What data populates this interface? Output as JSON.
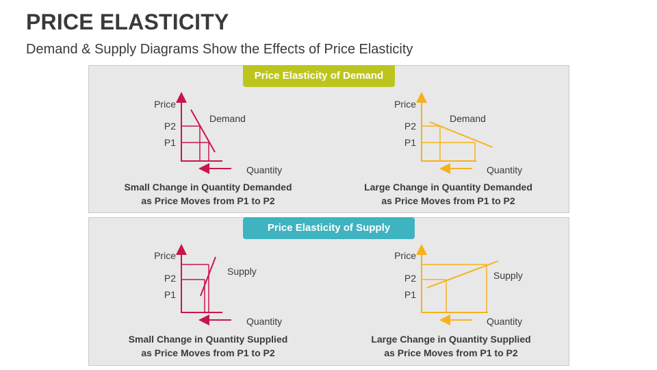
{
  "title": "PRICE ELASTICITY",
  "subtitle": "Demand & Supply Diagrams Show the Effects of Price Elasticity",
  "demand_section": {
    "badge": "Price Elasticity of Demand",
    "left": {
      "price_label": "Price",
      "p2": "P2",
      "p1": "P1",
      "curve_label": "Demand",
      "quantity_label": "Quantity",
      "caption_line1": "Small Change in Quantity Demanded",
      "caption_line2": "as Price Moves from P1 to P2"
    },
    "right": {
      "price_label": "Price",
      "p2": "P2",
      "p1": "P1",
      "curve_label": "Demand",
      "quantity_label": "Quantity",
      "caption_line1": "Large Change in Quantity Demanded",
      "caption_line2": "as Price Moves from P1 to P2"
    }
  },
  "supply_section": {
    "badge": "Price Elasticity of Supply",
    "left": {
      "price_label": "Price",
      "p2": "P2",
      "p1": "P1",
      "curve_label": "Supply",
      "quantity_label": "Quantity",
      "caption_line1": "Small Change in Quantity Supplied",
      "caption_line2": "as Price Moves from P1 to P2"
    },
    "right": {
      "price_label": "Price",
      "p2": "P2",
      "p1": "P1",
      "curve_label": "Supply",
      "quantity_label": "Quantity",
      "caption_line1": "Large Change in Quantity Supplied",
      "caption_line2": "as Price Moves from P1 to P2"
    }
  },
  "colors": {
    "inelastic": "#c8164a",
    "elastic": "#f5b21c",
    "demand_badge": "#bcc51e",
    "supply_badge": "#3fb3bf"
  }
}
